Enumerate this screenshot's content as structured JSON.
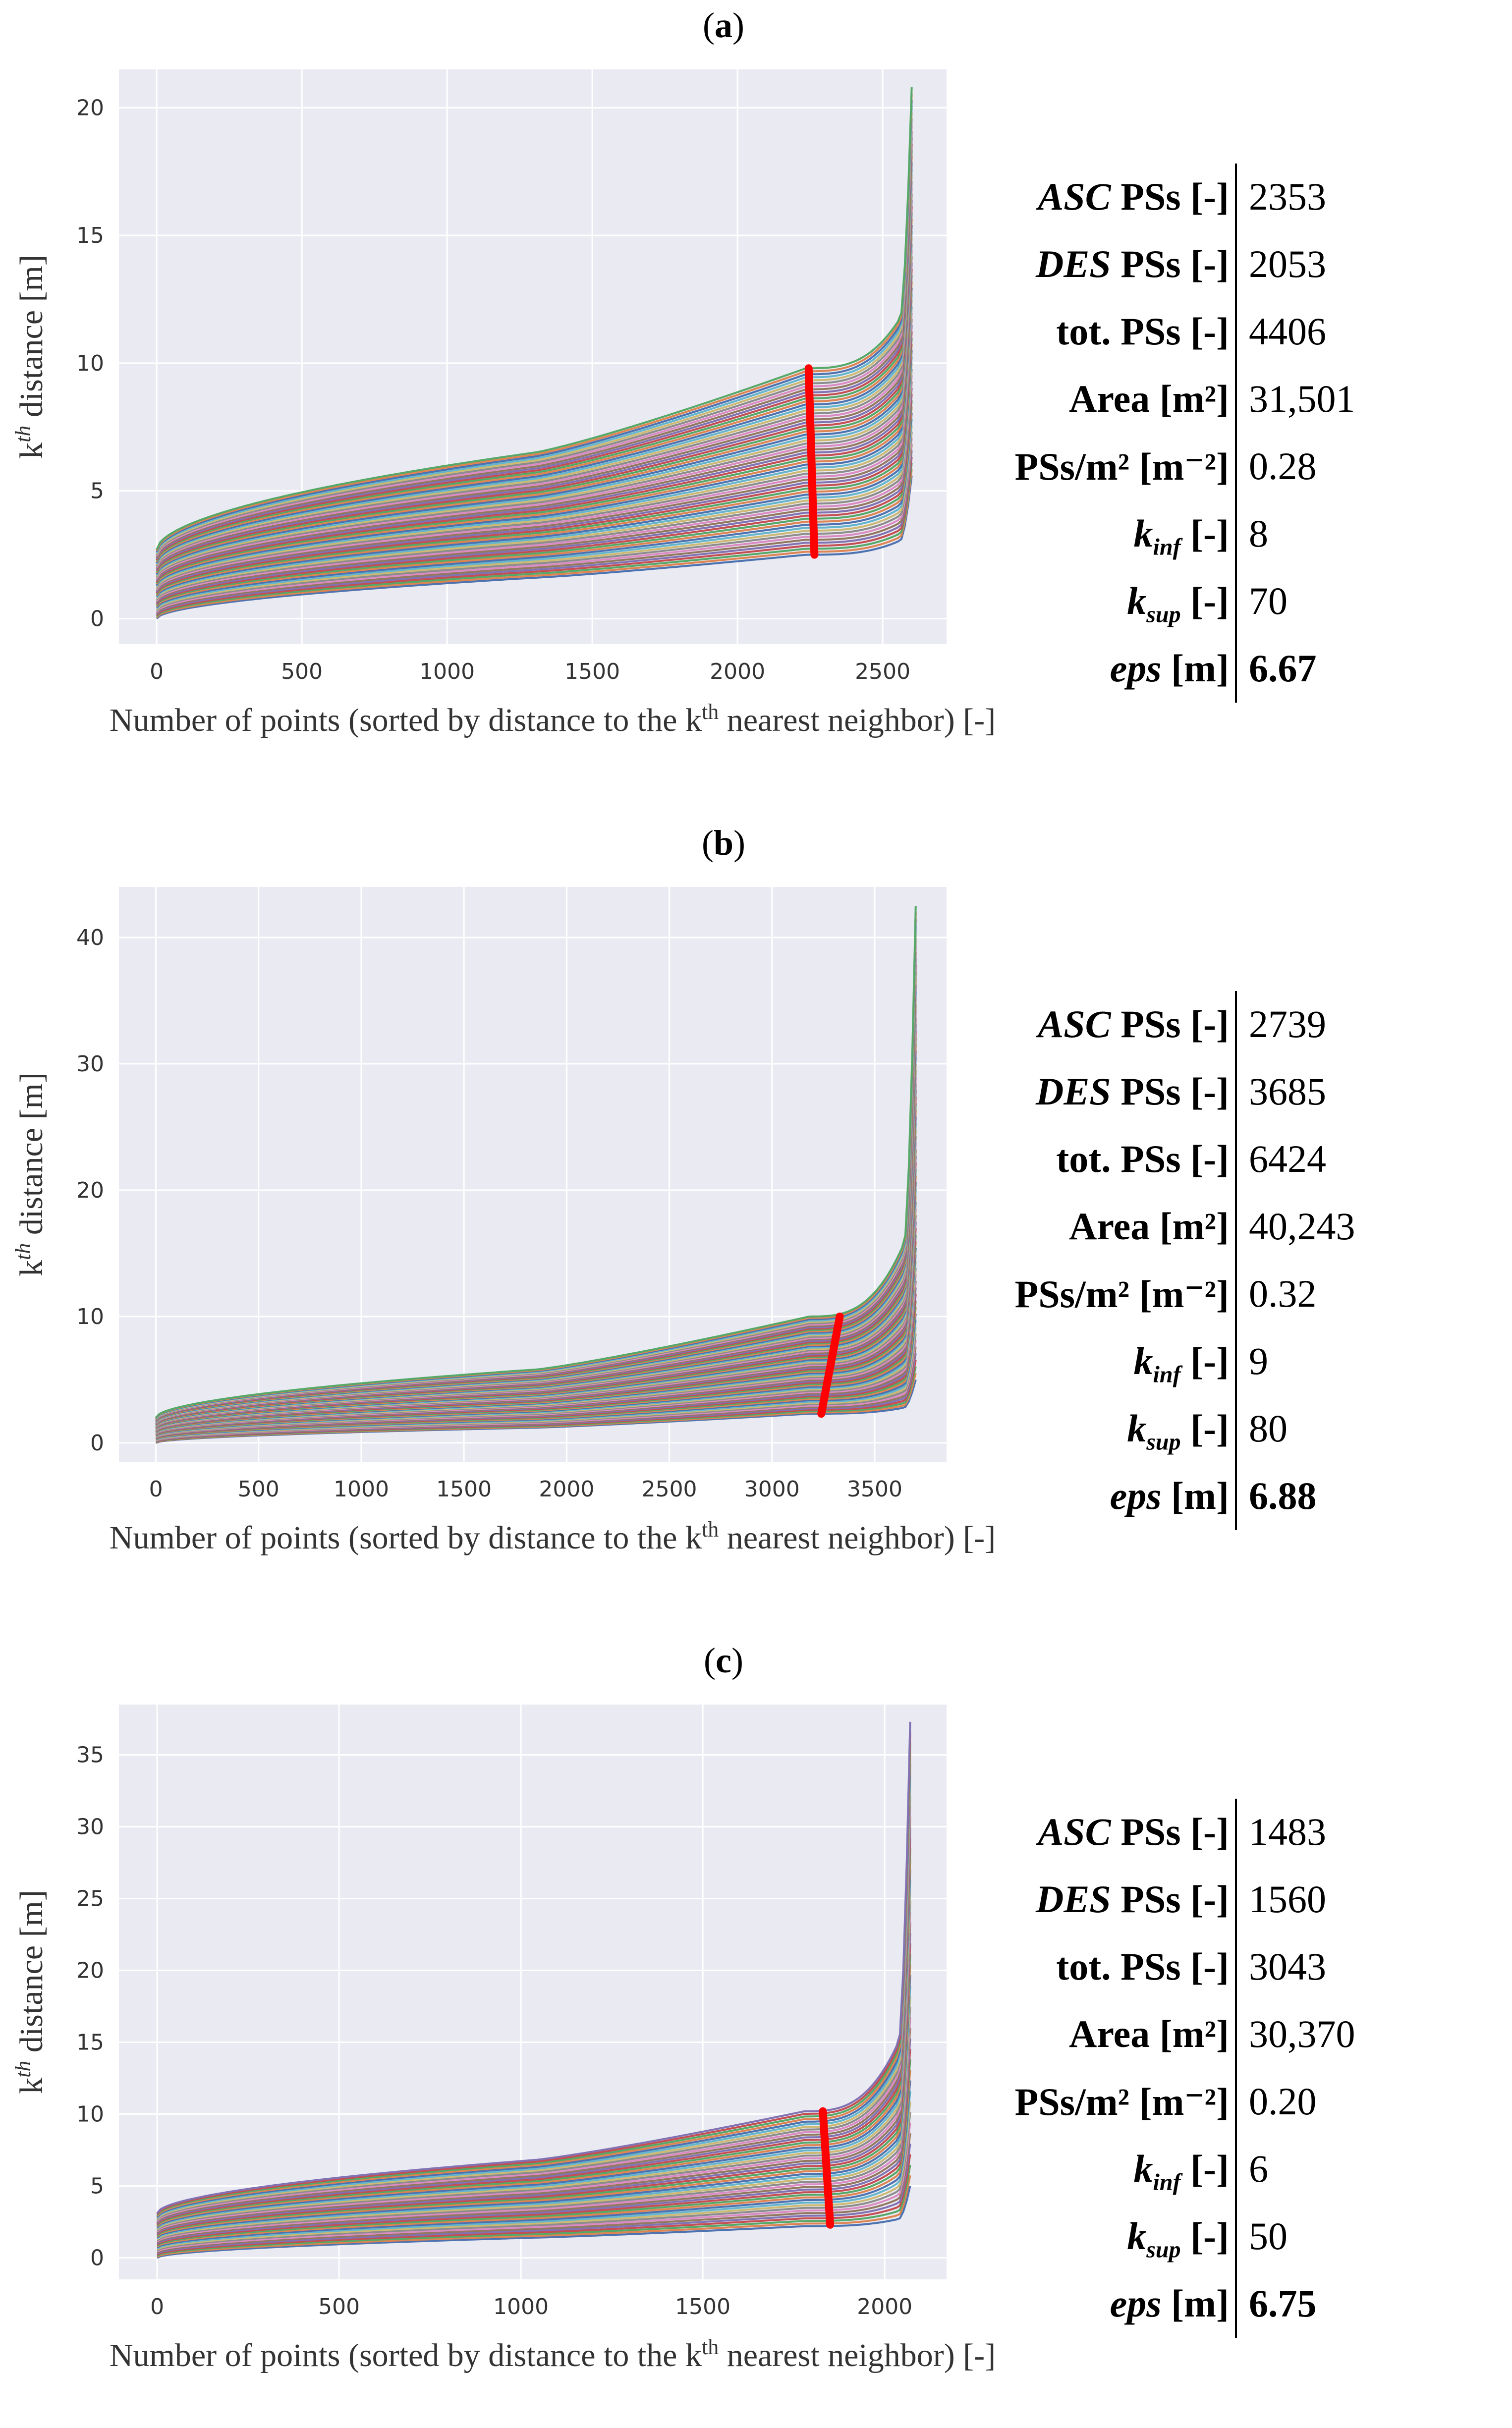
{
  "chart_data": [
    {
      "type": "line",
      "panel_label": "a",
      "ylabel": "k",
      "ylabel_sup": "th",
      "ylabel_rest": " distance [m]",
      "xlabel": "Number of points (sorted by distance to the k",
      "xlabel_sup": "th",
      "xlabel_rest": " nearest neighbor) [-]",
      "xlim": [
        -130,
        2720
      ],
      "ylim": [
        -1,
        21.5
      ],
      "xticks": [
        0,
        500,
        1000,
        1500,
        2000,
        2500
      ],
      "yticks": [
        0,
        5,
        10,
        15,
        20
      ],
      "n_points": 2600,
      "n_curves": 63,
      "curve_bottom": {
        "start": 0.0,
        "mid": 1.6,
        "knee": 2.5,
        "end": 5.6
      },
      "curve_top": {
        "start": 2.7,
        "mid": 6.5,
        "knee": 9.8,
        "end": 20.8
      },
      "eps_marker": {
        "x_bottom": 2265,
        "y_bottom": 2.5,
        "x_top": 2245,
        "y_top": 9.8
      },
      "stats": [
        {
          "label_italic": "ASC",
          "label": " PSs [-]",
          "value": "2353"
        },
        {
          "label_italic": "DES",
          "label": " PSs [-]",
          "value": "2053"
        },
        {
          "label_italic": "",
          "label": "tot. PSs [-]",
          "value": "4406"
        },
        {
          "label_italic": "",
          "label": "Area [m²]",
          "value": "31,501"
        },
        {
          "label_italic": "",
          "label": "PSs/m² [m⁻²]",
          "value": "0.28"
        },
        {
          "label_italic": "k",
          "label_sub": "inf",
          "label": " [-]",
          "value": "8"
        },
        {
          "label_italic": "k",
          "label_sub": "sup",
          "label": " [-]",
          "value": "70"
        },
        {
          "label_italic": "eps",
          "label": " [m]",
          "value": "6.67",
          "bold": true
        }
      ]
    },
    {
      "type": "line",
      "panel_label": "b",
      "ylabel": "k",
      "ylabel_sup": "th",
      "ylabel_rest": " distance [m]",
      "xlabel": "Number of points (sorted by distance to the k",
      "xlabel_sup": "th",
      "xlabel_rest": " nearest neighbor) [-]",
      "xlim": [
        -180,
        3850
      ],
      "ylim": [
        -1.5,
        44
      ],
      "xticks": [
        0,
        500,
        1000,
        1500,
        2000,
        2500,
        3000,
        3500
      ],
      "yticks": [
        0,
        10,
        20,
        30,
        40
      ],
      "n_points": 3700,
      "n_curves": 73,
      "curve_bottom": {
        "start": 0.0,
        "mid": 1.2,
        "knee": 2.3,
        "end": 5.0
      },
      "curve_top": {
        "start": 2.0,
        "mid": 5.8,
        "knee": 10.0,
        "end": 42.5
      },
      "eps_marker": {
        "x_bottom": 3240,
        "y_bottom": 2.3,
        "x_top": 3330,
        "y_top": 10.0
      },
      "stats": [
        {
          "label_italic": "ASC",
          "label": " PSs [-]",
          "value": "2739"
        },
        {
          "label_italic": "DES",
          "label": " PSs [-]",
          "value": "3685"
        },
        {
          "label_italic": "",
          "label": "tot. PSs [-]",
          "value": "6424"
        },
        {
          "label_italic": "",
          "label": "Area [m²]",
          "value": "40,243"
        },
        {
          "label_italic": "",
          "label": "PSs/m² [m⁻²]",
          "value": "0.32"
        },
        {
          "label_italic": "k",
          "label_sub": "inf",
          "label": " [-]",
          "value": "9"
        },
        {
          "label_italic": "k",
          "label_sub": "sup",
          "label": " [-]",
          "value": "80"
        },
        {
          "label_italic": "eps",
          "label": " [m]",
          "value": "6.88",
          "bold": true
        }
      ]
    },
    {
      "type": "line",
      "panel_label": "c",
      "ylabel": "k",
      "ylabel_sup": "th",
      "ylabel_rest": " distance [m]",
      "xlabel": "Number of points (sorted by distance to the k",
      "xlabel_sup": "th",
      "xlabel_rest": " nearest neighbor) [-]",
      "xlim": [
        -105,
        2170
      ],
      "ylim": [
        -1.5,
        38.5
      ],
      "xticks": [
        0,
        500,
        1000,
        1500,
        2000
      ],
      "yticks": [
        0,
        5,
        10,
        15,
        20,
        25,
        30,
        35
      ],
      "n_points": 2070,
      "n_curves": 45,
      "curve_bottom": {
        "start": 0.0,
        "mid": 1.4,
        "knee": 2.2,
        "end": 5.0
      },
      "curve_top": {
        "start": 3.1,
        "mid": 6.8,
        "knee": 10.2,
        "end": 37.3
      },
      "eps_marker": {
        "x_bottom": 1850,
        "y_bottom": 2.3,
        "x_top": 1830,
        "y_top": 10.2
      },
      "stats": [
        {
          "label_italic": "ASC",
          "label": " PSs [-]",
          "value": "1483"
        },
        {
          "label_italic": "DES",
          "label": " PSs [-]",
          "value": "1560"
        },
        {
          "label_italic": "",
          "label": "tot. PSs [-]",
          "value": "3043"
        },
        {
          "label_italic": "",
          "label": "Area [m²]",
          "value": "30,370"
        },
        {
          "label_italic": "",
          "label": "PSs/m² [m⁻²]",
          "value": "0.20"
        },
        {
          "label_italic": "k",
          "label_sub": "inf",
          "label": " [-]",
          "value": "6"
        },
        {
          "label_italic": "k",
          "label_sub": "sup",
          "label": " [-]",
          "value": "50"
        },
        {
          "label_italic": "eps",
          "label": " [m]",
          "value": "6.75",
          "bold": true
        }
      ]
    }
  ],
  "palette": [
    "#4c72b0",
    "#dd8452",
    "#55a868",
    "#c44e52",
    "#8172b3",
    "#937860",
    "#da8bc3",
    "#8c8c8c",
    "#ccb974",
    "#64b5cd"
  ],
  "colors": {
    "plot_bg": "#eaeaf2",
    "grid": "#ffffff",
    "eps": "#ff0000"
  }
}
